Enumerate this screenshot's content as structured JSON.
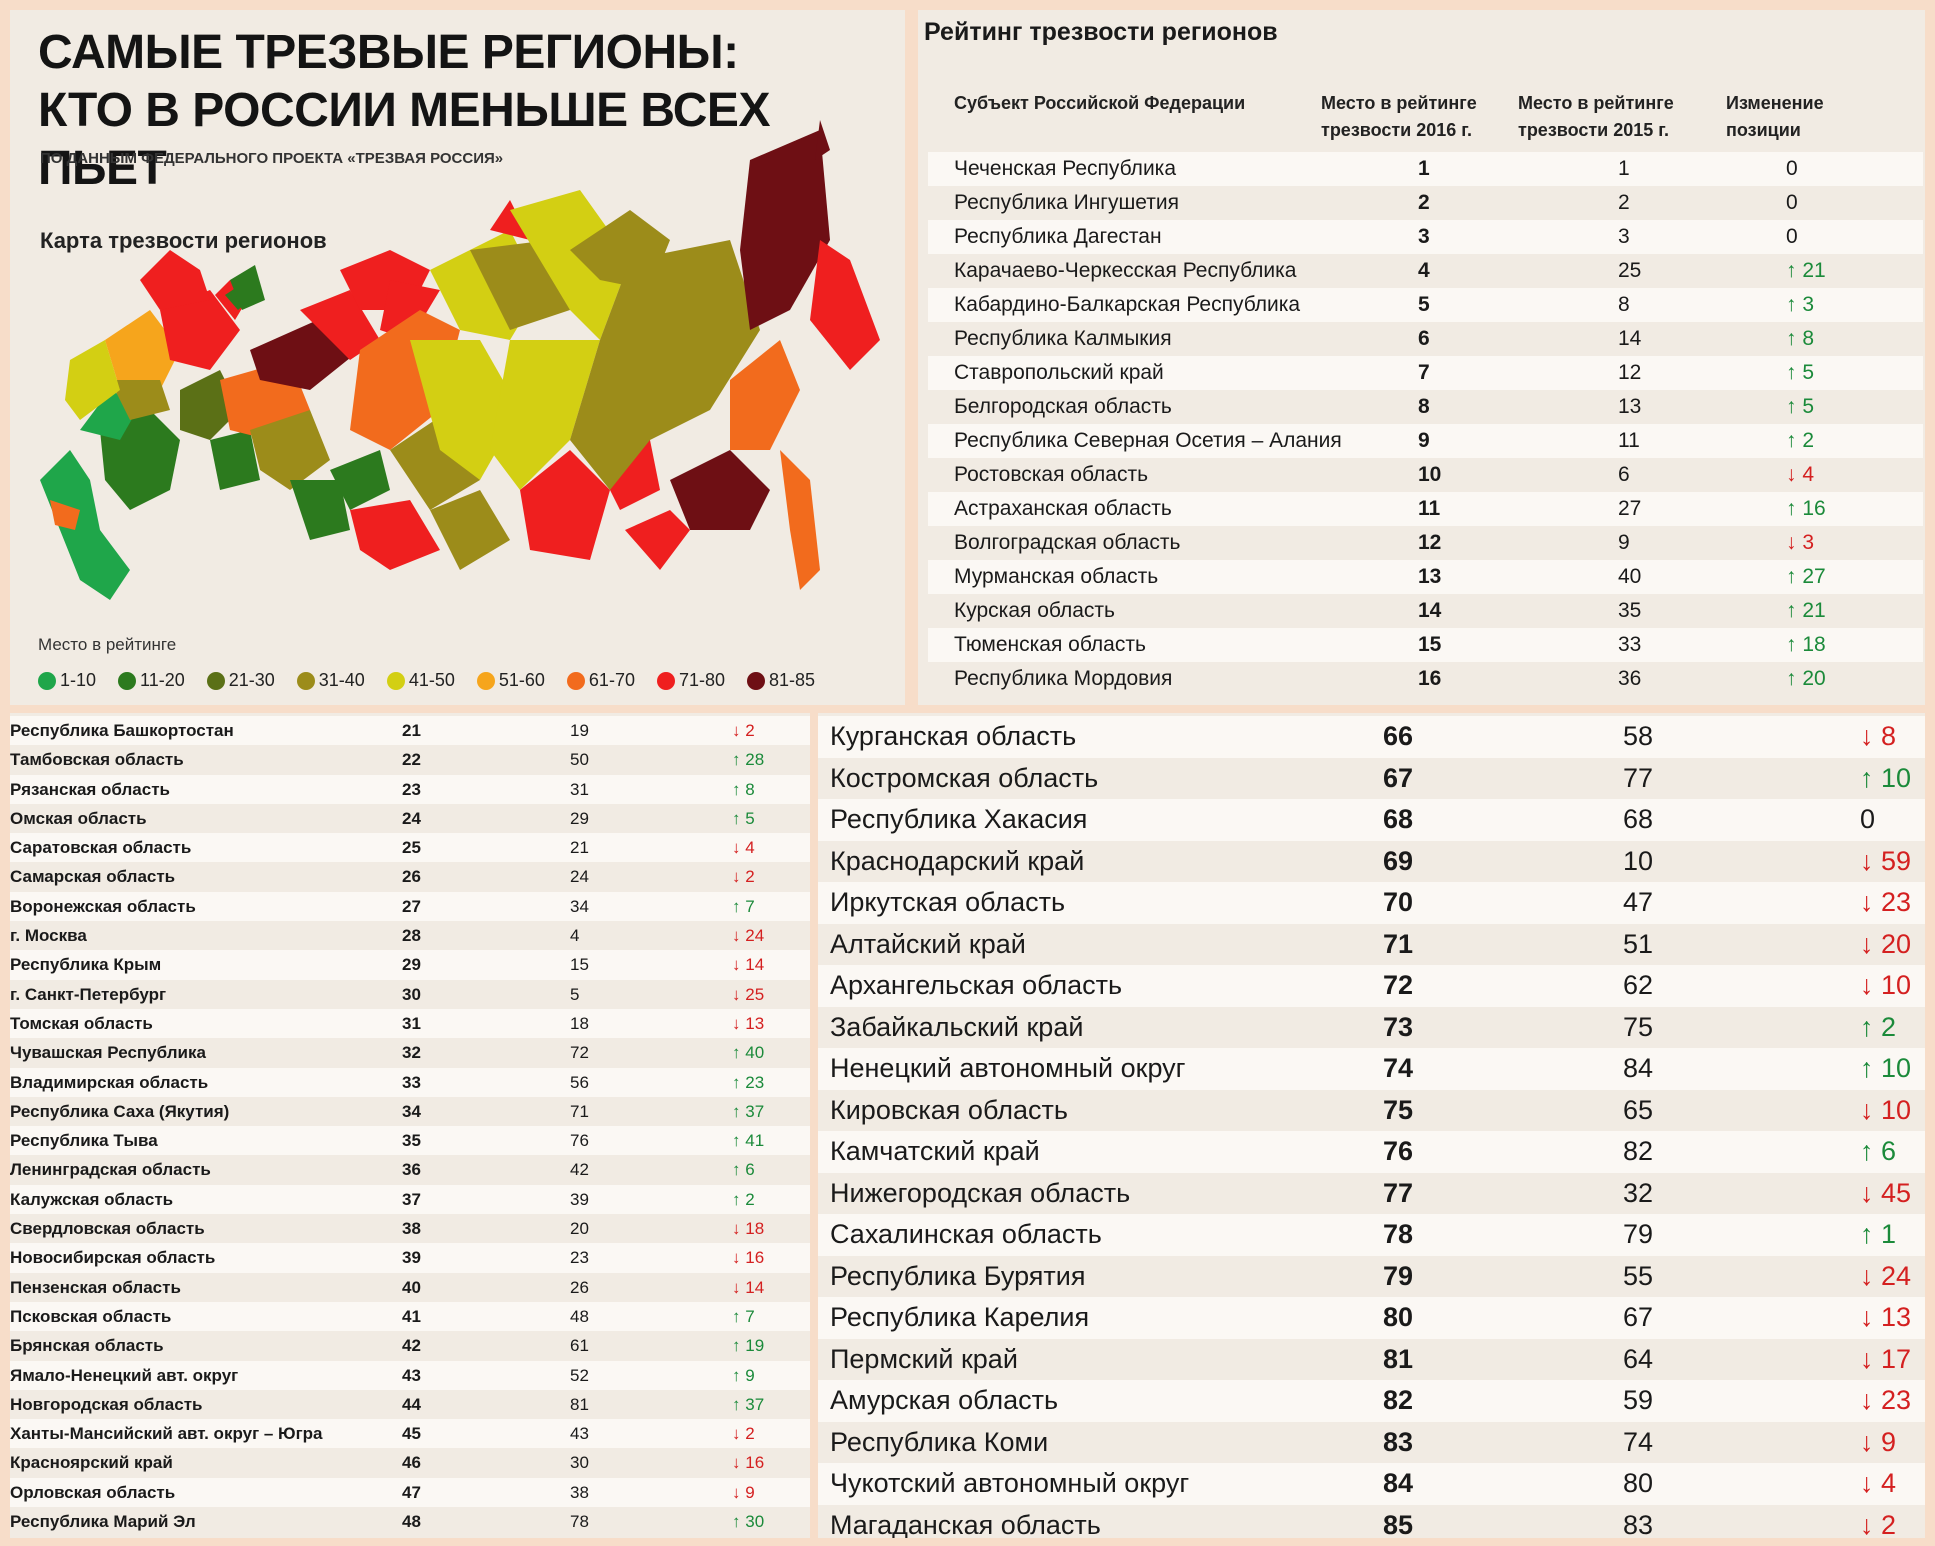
{
  "header": {
    "title_line1": "САМЫЕ ТРЕЗВЫЕ РЕГИОНЫ:",
    "title_line2": "КТО В РОССИИ МЕНЬШЕ ВСЕХ ПЬЕТ",
    "subtitle": "ПО ДАННЫМ ФЕДЕРАЛЬНОГО ПРОЕКТА «ТРЕЗВАЯ РОССИЯ»"
  },
  "map": {
    "title": "Карта трезвости регионов",
    "legend_title": "Место в рейтинге",
    "legend": [
      {
        "label": "1-10",
        "color": "#1fa64a"
      },
      {
        "label": "11-20",
        "color": "#2c7a1e"
      },
      {
        "label": "21-30",
        "color": "#5b7016"
      },
      {
        "label": "31-40",
        "color": "#9c8c1a"
      },
      {
        "label": "41-50",
        "color": "#d3cf13"
      },
      {
        "label": "51-60",
        "color": "#f6a51c"
      },
      {
        "label": "61-70",
        "color": "#f26b1d"
      },
      {
        "label": "71-80",
        "color": "#ef1f1f"
      },
      {
        "label": "81-85",
        "color": "#6e0f14"
      }
    ]
  },
  "rating": {
    "title": "Рейтинг трезвости регионов",
    "headers": {
      "region": "Субъект Российской Федерации",
      "place_2016": "Место в рейтинге трезвости 2016 г.",
      "place_2015": "Место в рейтинге трезвости 2015 г.",
      "change": "Изменение позиции"
    },
    "top_rows": [
      {
        "region": "Чеченская Республика",
        "r2016": "1",
        "r2015": "1",
        "change": "0",
        "dir": "same"
      },
      {
        "region": "Республика Ингушетия",
        "r2016": "2",
        "r2015": "2",
        "change": "0",
        "dir": "same"
      },
      {
        "region": "Республика Дагестан",
        "r2016": "3",
        "r2015": "3",
        "change": "0",
        "dir": "same"
      },
      {
        "region": "Карачаево-Черкесская Республика",
        "r2016": "4",
        "r2015": "25",
        "change": "21",
        "dir": "up"
      },
      {
        "region": "Кабардино-Балкарская Республика",
        "r2016": "5",
        "r2015": "8",
        "change": "3",
        "dir": "up"
      },
      {
        "region": "Республика Калмыкия",
        "r2016": "6",
        "r2015": "14",
        "change": "8",
        "dir": "up"
      },
      {
        "region": "Ставропольский край",
        "r2016": "7",
        "r2015": "12",
        "change": "5",
        "dir": "up"
      },
      {
        "region": "Белгородская область",
        "r2016": "8",
        "r2015": "13",
        "change": "5",
        "dir": "up"
      },
      {
        "region": "Республика Северная Осетия – Алания",
        "r2016": "9",
        "r2015": "11",
        "change": "2",
        "dir": "up"
      },
      {
        "region": "Ростовская область",
        "r2016": "10",
        "r2015": "6",
        "change": "4",
        "dir": "down"
      },
      {
        "region": "Астраханская область",
        "r2016": "11",
        "r2015": "27",
        "change": "16",
        "dir": "up"
      },
      {
        "region": "Волгоградская область",
        "r2016": "12",
        "r2015": "9",
        "change": "3",
        "dir": "down"
      },
      {
        "region": "Мурманская область",
        "r2016": "13",
        "r2015": "40",
        "change": "27",
        "dir": "up"
      },
      {
        "region": "Курская область",
        "r2016": "14",
        "r2015": "35",
        "change": "21",
        "dir": "up"
      },
      {
        "region": "Тюменская область",
        "r2016": "15",
        "r2015": "33",
        "change": "18",
        "dir": "up"
      },
      {
        "region": "Республика Мордовия",
        "r2016": "16",
        "r2015": "36",
        "change": "20",
        "dir": "up"
      }
    ],
    "mid_rows": [
      {
        "region": "Республика Башкортостан",
        "r2016": "21",
        "r2015": "19",
        "change": "2",
        "dir": "down"
      },
      {
        "region": "Тамбовская область",
        "r2016": "22",
        "r2015": "50",
        "change": "28",
        "dir": "up"
      },
      {
        "region": "Рязанская область",
        "r2016": "23",
        "r2015": "31",
        "change": "8",
        "dir": "up"
      },
      {
        "region": "Омская область",
        "r2016": "24",
        "r2015": "29",
        "change": "5",
        "dir": "up"
      },
      {
        "region": "Саратовская область",
        "r2016": "25",
        "r2015": "21",
        "change": "4",
        "dir": "down"
      },
      {
        "region": "Самарская область",
        "r2016": "26",
        "r2015": "24",
        "change": "2",
        "dir": "down"
      },
      {
        "region": "Воронежская область",
        "r2016": "27",
        "r2015": "34",
        "change": "7",
        "dir": "up"
      },
      {
        "region": "г. Москва",
        "r2016": "28",
        "r2015": "4",
        "change": "24",
        "dir": "down"
      },
      {
        "region": "Республика Крым",
        "r2016": "29",
        "r2015": "15",
        "change": "14",
        "dir": "down"
      },
      {
        "region": "г. Санкт-Петербург",
        "r2016": "30",
        "r2015": "5",
        "change": "25",
        "dir": "down"
      },
      {
        "region": "Томская область",
        "r2016": "31",
        "r2015": "18",
        "change": "13",
        "dir": "down"
      },
      {
        "region": "Чувашская Республика",
        "r2016": "32",
        "r2015": "72",
        "change": "40",
        "dir": "up"
      },
      {
        "region": "Владимирская область",
        "r2016": "33",
        "r2015": "56",
        "change": "23",
        "dir": "up"
      },
      {
        "region": "Республика Саха (Якутия)",
        "r2016": "34",
        "r2015": "71",
        "change": "37",
        "dir": "up"
      },
      {
        "region": "Республика Тыва",
        "r2016": "35",
        "r2015": "76",
        "change": "41",
        "dir": "up"
      },
      {
        "region": "Ленинградская область",
        "r2016": "36",
        "r2015": "42",
        "change": "6",
        "dir": "up"
      },
      {
        "region": "Калужская область",
        "r2016": "37",
        "r2015": "39",
        "change": "2",
        "dir": "up"
      },
      {
        "region": "Свердловская область",
        "r2016": "38",
        "r2015": "20",
        "change": "18",
        "dir": "down"
      },
      {
        "region": "Новосибирская область",
        "r2016": "39",
        "r2015": "23",
        "change": "16",
        "dir": "down"
      },
      {
        "region": "Пензенская область",
        "r2016": "40",
        "r2015": "26",
        "change": "14",
        "dir": "down"
      },
      {
        "region": "Псковская область",
        "r2016": "41",
        "r2015": "48",
        "change": "7",
        "dir": "up"
      },
      {
        "region": "Брянская область",
        "r2016": "42",
        "r2015": "61",
        "change": "19",
        "dir": "up"
      },
      {
        "region": "Ямало-Ненецкий авт. округ",
        "r2016": "43",
        "r2015": "52",
        "change": "9",
        "dir": "up"
      },
      {
        "region": "Новгородская область",
        "r2016": "44",
        "r2015": "81",
        "change": "37",
        "dir": "up"
      },
      {
        "region": "Ханты-Мансийский авт. округ – Югра",
        "r2016": "45",
        "r2015": "43",
        "change": "2",
        "dir": "down"
      },
      {
        "region": "Красноярский край",
        "r2016": "46",
        "r2015": "30",
        "change": "16",
        "dir": "down"
      },
      {
        "region": "Орловская область",
        "r2016": "47",
        "r2015": "38",
        "change": "9",
        "dir": "down"
      },
      {
        "region": "Республика Марий Эл",
        "r2016": "48",
        "r2015": "78",
        "change": "30",
        "dir": "up"
      }
    ],
    "bottom_rows": [
      {
        "region": "Курганская область",
        "r2016": "66",
        "r2015": "58",
        "change": "8",
        "dir": "down"
      },
      {
        "region": "Костромская область",
        "r2016": "67",
        "r2015": "77",
        "change": "10",
        "dir": "up"
      },
      {
        "region": "Республика Хакасия",
        "r2016": "68",
        "r2015": "68",
        "change": "0",
        "dir": "same"
      },
      {
        "region": "Краснодарский край",
        "r2016": "69",
        "r2015": "10",
        "change": "59",
        "dir": "down"
      },
      {
        "region": "Иркутская область",
        "r2016": "70",
        "r2015": "47",
        "change": "23",
        "dir": "down"
      },
      {
        "region": "Алтайский край",
        "r2016": "71",
        "r2015": "51",
        "change": "20",
        "dir": "down"
      },
      {
        "region": "Архангельская область",
        "r2016": "72",
        "r2015": "62",
        "change": "10",
        "dir": "down"
      },
      {
        "region": "Забайкальский край",
        "r2016": "73",
        "r2015": "75",
        "change": "2",
        "dir": "up"
      },
      {
        "region": "Ненецкий автономный округ",
        "r2016": "74",
        "r2015": "84",
        "change": "10",
        "dir": "up"
      },
      {
        "region": "Кировская область",
        "r2016": "75",
        "r2015": "65",
        "change": "10",
        "dir": "down"
      },
      {
        "region": "Камчатский край",
        "r2016": "76",
        "r2015": "82",
        "change": "6",
        "dir": "up"
      },
      {
        "region": "Нижегородская область",
        "r2016": "77",
        "r2015": "32",
        "change": "45",
        "dir": "down"
      },
      {
        "region": "Сахалинская область",
        "r2016": "78",
        "r2015": "79",
        "change": "1",
        "dir": "up"
      },
      {
        "region": "Республика Бурятия",
        "r2016": "79",
        "r2015": "55",
        "change": "24",
        "dir": "down"
      },
      {
        "region": "Республика Карелия",
        "r2016": "80",
        "r2015": "67",
        "change": "13",
        "dir": "down"
      },
      {
        "region": "Пермский край",
        "r2016": "81",
        "r2015": "64",
        "change": "17",
        "dir": "down"
      },
      {
        "region": "Амурская область",
        "r2016": "82",
        "r2015": "59",
        "change": "23",
        "dir": "down"
      },
      {
        "region": "Республика Коми",
        "r2016": "83",
        "r2015": "74",
        "change": "9",
        "dir": "down"
      },
      {
        "region": "Чукотский автономный округ",
        "r2016": "84",
        "r2015": "80",
        "change": "4",
        "dir": "down"
      },
      {
        "region": "Магаданская область",
        "r2016": "85",
        "r2015": "83",
        "change": "2",
        "dir": "down"
      }
    ]
  }
}
